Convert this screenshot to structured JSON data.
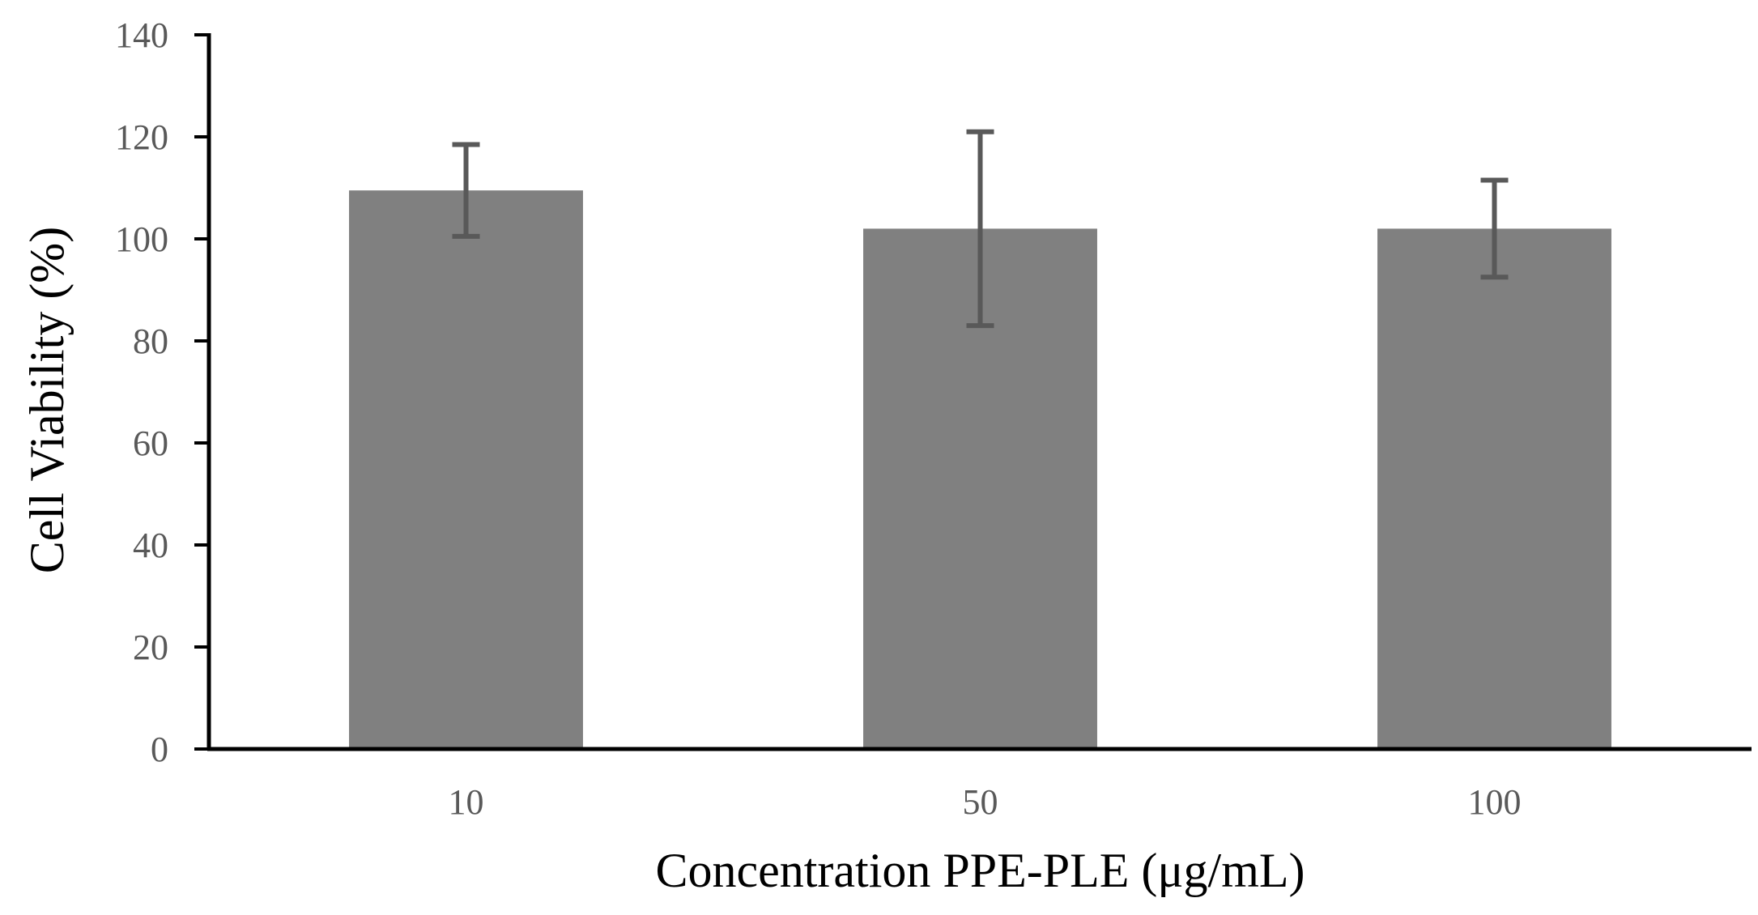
{
  "chart_data": {
    "type": "bar",
    "title": "",
    "xlabel": "Concentration PPE-PLE (μg/mL)",
    "ylabel": "Cell Viability (%)",
    "categories": [
      "10",
      "50",
      "100"
    ],
    "series": [
      {
        "name": "Cell Viability",
        "values": [
          109.5,
          102,
          102
        ],
        "error": [
          9,
          19,
          9.5
        ]
      }
    ],
    "ylim": [
      0,
      140
    ],
    "yticks": [
      0,
      20,
      40,
      60,
      80,
      100,
      120,
      140
    ],
    "ytick_labels": [
      "0",
      "20",
      "40",
      "60",
      "80",
      "100",
      "120",
      "140"
    ],
    "grid": false,
    "legend": "none",
    "colors": {
      "bar": "#808080",
      "error_bar": "#595959",
      "axis": "#000000",
      "tick_text": "#595959"
    }
  }
}
